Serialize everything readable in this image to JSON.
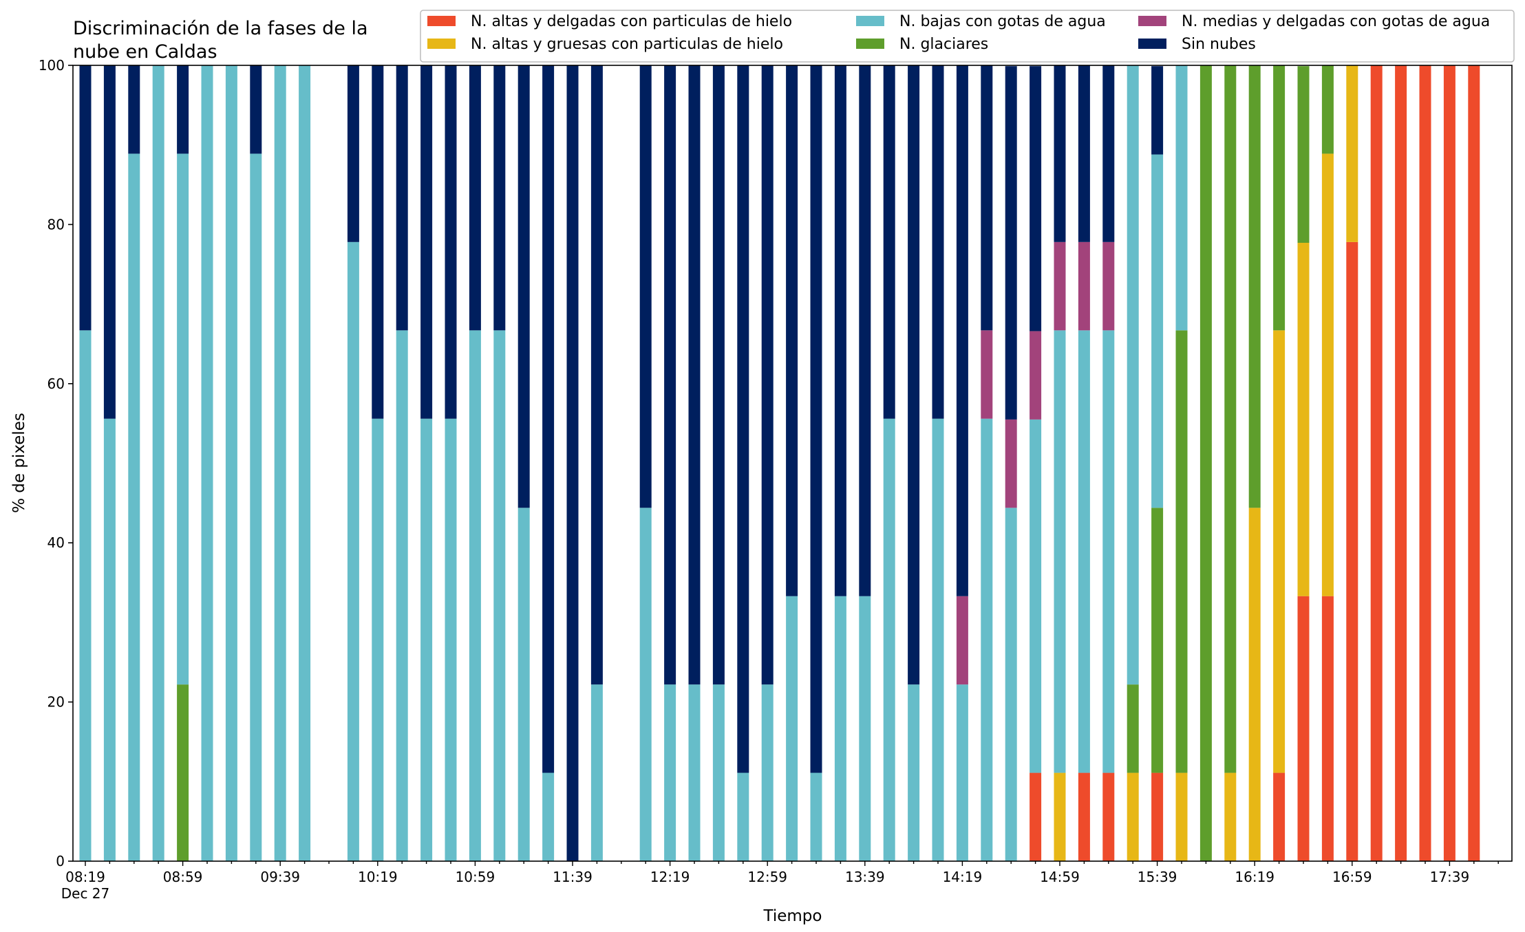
{
  "chart_data": {
    "type": "bar",
    "stacked": true,
    "title": [
      "Discriminación de la fases de la",
      "nube en Caldas"
    ],
    "xlabel": "Tiempo",
    "ylabel": "% de pixeles",
    "ylim": [
      0,
      100
    ],
    "yticks": [
      0,
      20,
      40,
      60,
      80,
      100
    ],
    "x_tick_labels": [
      {
        "slot": 0,
        "label": "08:19",
        "sub": "Dec 27"
      },
      {
        "slot": 4,
        "label": "08:59"
      },
      {
        "slot": 8,
        "label": "09:39"
      },
      {
        "slot": 12,
        "label": "10:19"
      },
      {
        "slot": 16,
        "label": "10:59"
      },
      {
        "slot": 20,
        "label": "11:39"
      },
      {
        "slot": 24,
        "label": "12:19"
      },
      {
        "slot": 28,
        "label": "12:59"
      },
      {
        "slot": 32,
        "label": "13:39"
      },
      {
        "slot": 36,
        "label": "14:19"
      },
      {
        "slot": 40,
        "label": "14:59"
      },
      {
        "slot": 44,
        "label": "15:39"
      },
      {
        "slot": 48,
        "label": "16:19"
      },
      {
        "slot": 52,
        "label": "16:59"
      },
      {
        "slot": 56,
        "label": "17:39"
      }
    ],
    "legend_placement": "top-right",
    "series": [
      {
        "name": "N. altas y delgadas con particulas de hielo",
        "color": "#ee4b2b",
        "legend_col": 0,
        "legend_row": 0
      },
      {
        "name": "N. altas y gruesas con particulas de hielo",
        "color": "#e7b716",
        "legend_col": 0,
        "legend_row": 1
      },
      {
        "name": "N. bajas con gotas de agua",
        "color": "#66bdc9",
        "legend_col": 1,
        "legend_row": 0
      },
      {
        "name": "N. glaciares",
        "color": "#5e9e2c",
        "legend_col": 1,
        "legend_row": 1
      },
      {
        "name": "N. medias y delgadas con gotas de agua",
        "color": "#a2437b",
        "legend_col": 2,
        "legend_row": 0
      },
      {
        "name": "Sin nubes",
        "color": "#001f5e",
        "legend_col": 2,
        "legend_row": 1
      }
    ],
    "stack_order": [
      "N. altas y delgadas con particulas de hielo",
      "N. altas y gruesas con particulas de hielo",
      "N. glaciares",
      "N. bajas con gotas de agua",
      "N. medias y delgadas con gotas de agua",
      "Sin nubes"
    ],
    "bars": [
      {
        "slot": 0,
        "values": {
          "N. bajas con gotas de agua": 66.7,
          "Sin nubes": 33.3
        }
      },
      {
        "slot": 1,
        "values": {
          "N. bajas con gotas de agua": 55.6,
          "Sin nubes": 44.4
        }
      },
      {
        "slot": 2,
        "values": {
          "N. bajas con gotas de agua": 88.9,
          "Sin nubes": 11.1
        }
      },
      {
        "slot": 3,
        "values": {
          "N. bajas con gotas de agua": 100
        }
      },
      {
        "slot": 4,
        "values": {
          "N. bajas con gotas de agua": 66.7,
          "N. glaciares": 22.2,
          "Sin nubes": 11.1
        }
      },
      {
        "slot": 5,
        "values": {
          "N. bajas con gotas de agua": 100
        }
      },
      {
        "slot": 6,
        "values": {
          "N. bajas con gotas de agua": 100
        }
      },
      {
        "slot": 7,
        "values": {
          "N. bajas con gotas de agua": 88.9,
          "Sin nubes": 11.1
        }
      },
      {
        "slot": 8,
        "values": {
          "N. bajas con gotas de agua": 100
        }
      },
      {
        "slot": 9,
        "values": {
          "N. bajas con gotas de agua": 100
        }
      },
      {
        "slot": 11,
        "values": {
          "N. bajas con gotas de agua": 77.8,
          "Sin nubes": 22.2
        }
      },
      {
        "slot": 12,
        "values": {
          "N. bajas con gotas de agua": 55.6,
          "Sin nubes": 44.4
        }
      },
      {
        "slot": 13,
        "values": {
          "N. bajas con gotas de agua": 66.7,
          "Sin nubes": 33.3
        }
      },
      {
        "slot": 14,
        "values": {
          "N. bajas con gotas de agua": 55.6,
          "Sin nubes": 44.4
        }
      },
      {
        "slot": 15,
        "values": {
          "N. bajas con gotas de agua": 55.6,
          "Sin nubes": 44.4
        }
      },
      {
        "slot": 16,
        "values": {
          "N. bajas con gotas de agua": 66.7,
          "Sin nubes": 33.3
        }
      },
      {
        "slot": 17,
        "values": {
          "N. bajas con gotas de agua": 66.7,
          "Sin nubes": 33.3
        }
      },
      {
        "slot": 18,
        "values": {
          "N. bajas con gotas de agua": 44.4,
          "Sin nubes": 55.6
        }
      },
      {
        "slot": 19,
        "values": {
          "N. bajas con gotas de agua": 11.1,
          "Sin nubes": 88.9
        }
      },
      {
        "slot": 20,
        "values": {
          "Sin nubes": 100
        }
      },
      {
        "slot": 21,
        "values": {
          "N. bajas con gotas de agua": 22.2,
          "Sin nubes": 77.8
        }
      },
      {
        "slot": 23,
        "values": {
          "N. bajas con gotas de agua": 44.4,
          "Sin nubes": 55.6
        }
      },
      {
        "slot": 24,
        "values": {
          "N. bajas con gotas de agua": 22.2,
          "Sin nubes": 77.8
        }
      },
      {
        "slot": 25,
        "values": {
          "N. bajas con gotas de agua": 22.2,
          "Sin nubes": 77.8
        }
      },
      {
        "slot": 26,
        "values": {
          "N. bajas con gotas de agua": 22.2,
          "Sin nubes": 77.8
        }
      },
      {
        "slot": 27,
        "values": {
          "N. bajas con gotas de agua": 11.1,
          "Sin nubes": 88.9
        }
      },
      {
        "slot": 28,
        "values": {
          "N. bajas con gotas de agua": 22.2,
          "Sin nubes": 77.8
        }
      },
      {
        "slot": 29,
        "values": {
          "N. bajas con gotas de agua": 33.3,
          "Sin nubes": 66.7
        }
      },
      {
        "slot": 30,
        "values": {
          "N. bajas con gotas de agua": 11.1,
          "Sin nubes": 88.9
        }
      },
      {
        "slot": 31,
        "values": {
          "N. bajas con gotas de agua": 33.3,
          "Sin nubes": 66.7
        }
      },
      {
        "slot": 32,
        "values": {
          "N. bajas con gotas de agua": 33.3,
          "Sin nubes": 66.7
        }
      },
      {
        "slot": 33,
        "values": {
          "N. bajas con gotas de agua": 55.6,
          "Sin nubes": 44.4
        }
      },
      {
        "slot": 34,
        "values": {
          "N. bajas con gotas de agua": 22.2,
          "Sin nubes": 77.8
        }
      },
      {
        "slot": 35,
        "values": {
          "N. bajas con gotas de agua": 55.6,
          "Sin nubes": 44.4
        }
      },
      {
        "slot": 36,
        "values": {
          "N. bajas con gotas de agua": 22.2,
          "N. medias y delgadas con gotas de agua": 11.1,
          "Sin nubes": 66.7
        }
      },
      {
        "slot": 37,
        "values": {
          "N. bajas con gotas de agua": 55.6,
          "N. medias y delgadas con gotas de agua": 11.1,
          "Sin nubes": 33.3
        }
      },
      {
        "slot": 38,
        "values": {
          "N. bajas con gotas de agua": 44.4,
          "N. medias y delgadas con gotas de agua": 11.1,
          "Sin nubes": 44.4
        }
      },
      {
        "slot": 39,
        "values": {
          "N. altas y delgadas con particulas de hielo": 11.1,
          "N. bajas con gotas de agua": 44.4,
          "N. medias y delgadas con gotas de agua": 11.1,
          "Sin nubes": 33.3
        }
      },
      {
        "slot": 40,
        "values": {
          "N. altas y gruesas con particulas de hielo": 11.1,
          "N. bajas con gotas de agua": 55.6,
          "N. medias y delgadas con gotas de agua": 11.1,
          "Sin nubes": 22.2
        }
      },
      {
        "slot": 41,
        "values": {
          "N. altas y delgadas con particulas de hielo": 11.1,
          "N. bajas con gotas de agua": 55.6,
          "N. medias y delgadas con gotas de agua": 11.1,
          "Sin nubes": 22.2
        }
      },
      {
        "slot": 42,
        "values": {
          "N. altas y delgadas con particulas de hielo": 11.1,
          "N. bajas con gotas de agua": 55.6,
          "N. medias y delgadas con gotas de agua": 11.1,
          "Sin nubes": 22.2
        }
      },
      {
        "slot": 43,
        "values": {
          "N. altas y gruesas con particulas de hielo": 11.1,
          "N. bajas con gotas de agua": 77.8,
          "N. glaciares": 11.1
        }
      },
      {
        "slot": 44,
        "values": {
          "N. altas y delgadas con particulas de hielo": 11.1,
          "N. bajas con gotas de agua": 44.4,
          "N. glaciares": 33.3,
          "Sin nubes": 11.1
        }
      },
      {
        "slot": 45,
        "values": {
          "N. altas y gruesas con particulas de hielo": 11.1,
          "N. bajas con gotas de agua": 33.3,
          "N. glaciares": 55.6
        }
      },
      {
        "slot": 46,
        "values": {
          "N. glaciares": 100
        }
      },
      {
        "slot": 47,
        "values": {
          "N. altas y gruesas con particulas de hielo": 11.1,
          "N. glaciares": 88.9
        }
      },
      {
        "slot": 48,
        "values": {
          "N. altas y gruesas con particulas de hielo": 44.4,
          "N. glaciares": 55.6
        }
      },
      {
        "slot": 49,
        "values": {
          "N. altas y delgadas con particulas de hielo": 11.1,
          "N. altas y gruesas con particulas de hielo": 55.6,
          "N. glaciares": 33.3
        }
      },
      {
        "slot": 50,
        "values": {
          "N. altas y delgadas con particulas de hielo": 33.3,
          "N. altas y gruesas con particulas de hielo": 44.4,
          "N. glaciares": 22.2
        }
      },
      {
        "slot": 51,
        "values": {
          "N. altas y delgadas con particulas de hielo": 33.3,
          "N. altas y gruesas con particulas de hielo": 55.6,
          "N. glaciares": 11.1
        }
      },
      {
        "slot": 52,
        "values": {
          "N. altas y delgadas con particulas de hielo": 77.8,
          "N. altas y gruesas con particulas de hielo": 22.2
        }
      },
      {
        "slot": 53,
        "values": {
          "N. altas y delgadas con particulas de hielo": 100
        }
      },
      {
        "slot": 54,
        "values": {
          "N. altas y delgadas con particulas de hielo": 100
        }
      },
      {
        "slot": 55,
        "values": {
          "N. altas y delgadas con particulas de hielo": 100
        }
      },
      {
        "slot": 56,
        "values": {
          "N. altas y delgadas con particulas de hielo": 100
        }
      },
      {
        "slot": 57,
        "values": {
          "N. altas y delgadas con particulas de hielo": 100
        }
      }
    ]
  }
}
